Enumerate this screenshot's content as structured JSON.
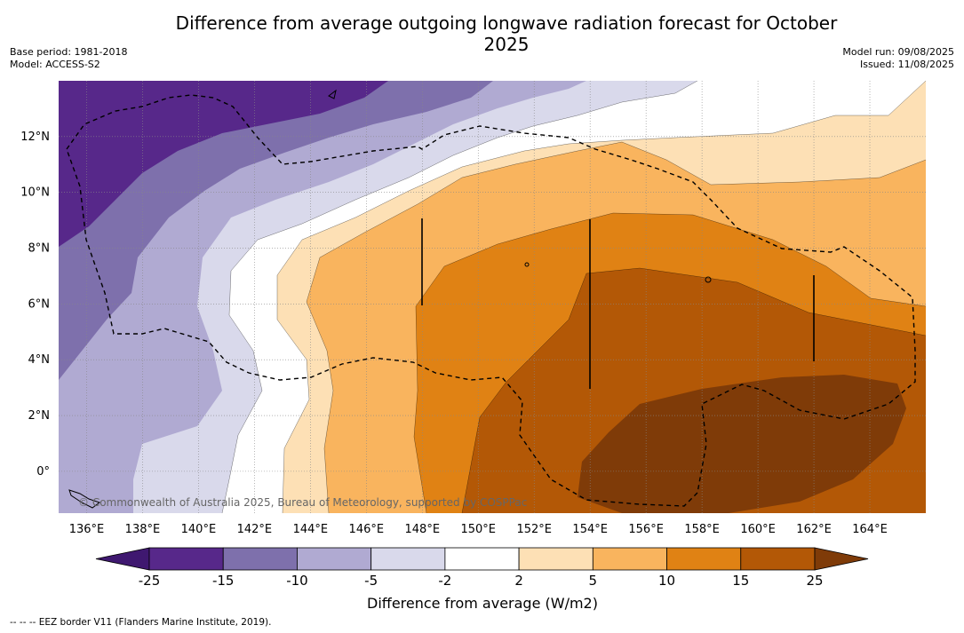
{
  "title": "Difference from average outgoing longwave radiation forecast for October 2025",
  "meta_left": [
    "Base period: 1981-2018",
    "Model: ACCESS-S2"
  ],
  "meta_right": [
    "Model run: 09/08/2025",
    "Issued: 11/08/2025"
  ],
  "copyright": "© Commonwealth of Australia 2025, Bureau of Meteorology, supported by COSPPac",
  "footnote": "--  --  -- EEZ border V11 (Flanders Marine Institute, 2019).",
  "chart_data": {
    "type": "heatmap",
    "title": "Difference from average outgoing longwave radiation forecast for October 2025",
    "x_range": [
      135,
      166
    ],
    "y_range": [
      -1.5,
      14
    ],
    "x_ticks": [
      136,
      138,
      140,
      142,
      144,
      146,
      148,
      150,
      152,
      154,
      156,
      158,
      160,
      162,
      164
    ],
    "x_tick_labels": [
      "136°E",
      "138°E",
      "140°E",
      "142°E",
      "144°E",
      "146°E",
      "148°E",
      "150°E",
      "152°E",
      "154°E",
      "156°E",
      "158°E",
      "160°E",
      "162°E",
      "164°E"
    ],
    "y_ticks": [
      0,
      2,
      4,
      6,
      8,
      10,
      12
    ],
    "y_tick_labels": [
      "0°",
      "2°N",
      "4°N",
      "6°N",
      "8°N",
      "10°N",
      "12°N"
    ],
    "grid": true,
    "colorbar": {
      "label": "Difference from average (W/m2)",
      "levels": [
        -25,
        -15,
        -10,
        -5,
        -2,
        2,
        5,
        10,
        15,
        25
      ],
      "level_labels": [
        "-25",
        "-15",
        "-10",
        "-5",
        "-2",
        "2",
        "5",
        "10",
        "15",
        "25"
      ],
      "colors": [
        "#3f1870",
        "#57288a",
        "#7e70ac",
        "#b0aad2",
        "#d9d9eb",
        "#ffffff",
        "#fde0b5",
        "#f9b45e",
        "#e08214",
        "#b35806",
        "#7f3b08"
      ],
      "extend": "both"
    },
    "approx_values": [
      {
        "lon": 137,
        "lat": 11,
        "value": -20
      },
      {
        "lon": 138,
        "lat": 6,
        "value": -12
      },
      {
        "lon": 138,
        "lat": 2,
        "value": -7
      },
      {
        "lon": 141,
        "lat": 4,
        "value": -4
      },
      {
        "lon": 143,
        "lat": 1,
        "value": 0
      },
      {
        "lon": 145,
        "lat": 3,
        "value": 3
      },
      {
        "lon": 147,
        "lat": 6,
        "value": 7
      },
      {
        "lon": 150,
        "lat": 4,
        "value": 12
      },
      {
        "lon": 156,
        "lat": 5,
        "value": 17
      },
      {
        "lon": 158,
        "lat": 0.5,
        "value": 28
      },
      {
        "lon": 163,
        "lat": 11,
        "value": 4
      }
    ]
  }
}
